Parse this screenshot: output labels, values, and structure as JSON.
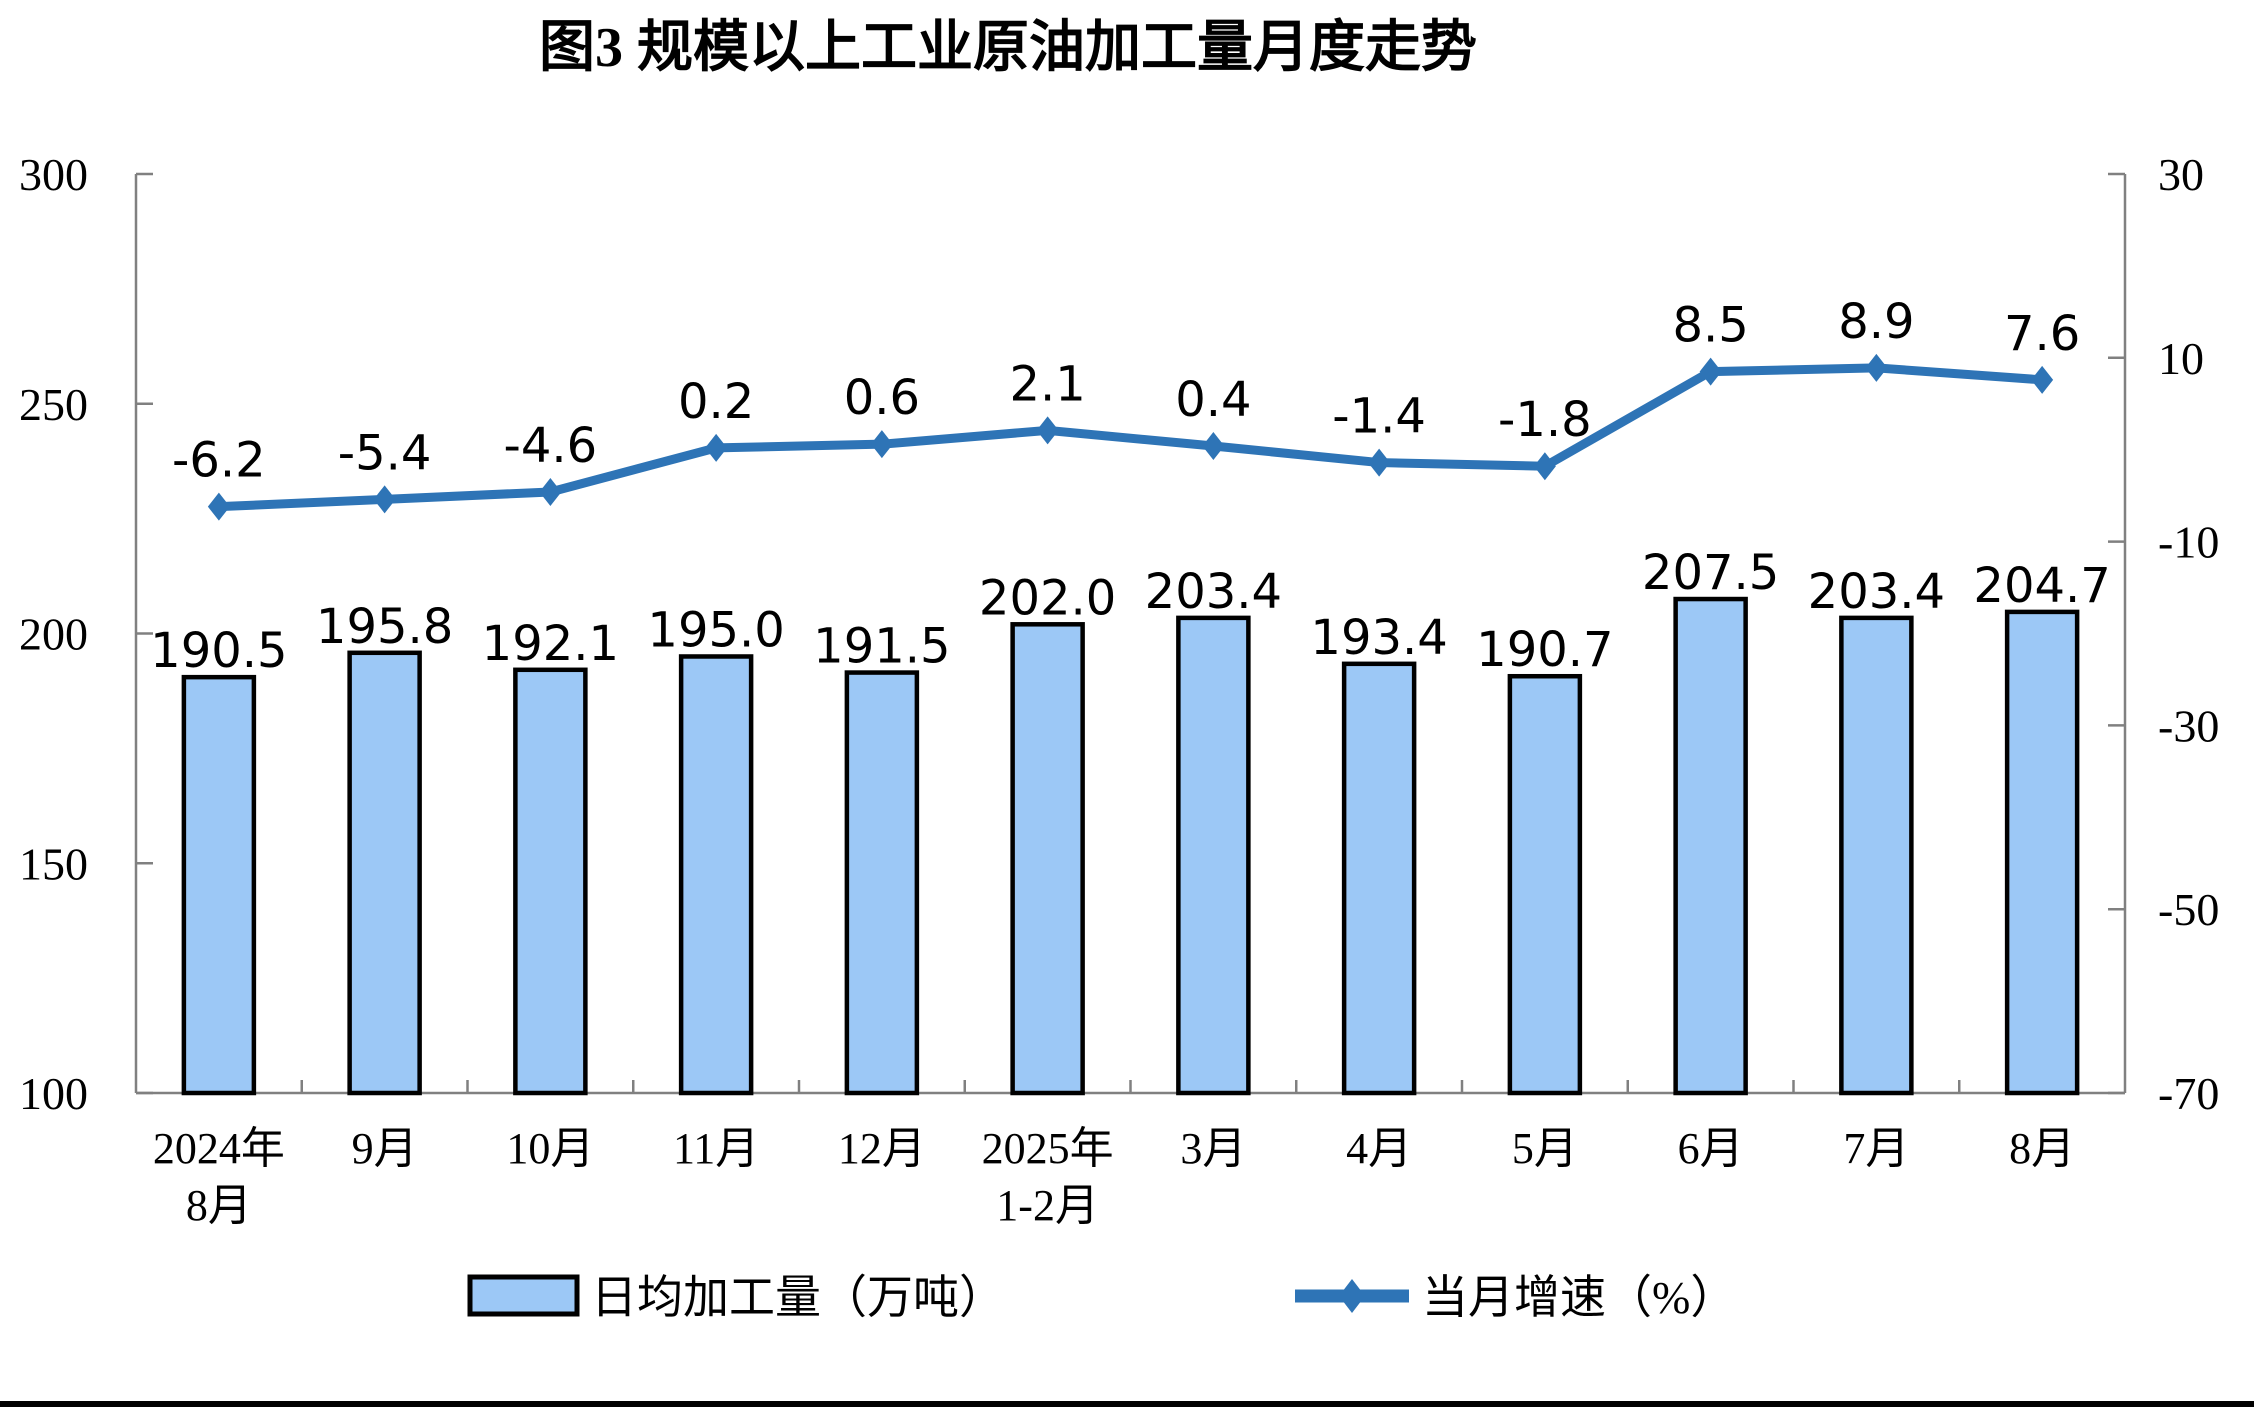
{
  "title": "图3 规模以上工业原油加工量月度走势",
  "colors": {
    "bar_fill": "#9CC8F6",
    "bar_border": "#000000",
    "line": "#2E74B6",
    "axis": "#808080",
    "text": "#000000",
    "divider": "#000000"
  },
  "legend": {
    "bar_label": "日均加工量（万吨）",
    "line_label": "当月增速（%）"
  },
  "chart_data": {
    "type": "bar+line",
    "title": "图3 规模以上工业原油加工量月度走势",
    "categories": [
      [
        "2024年",
        "8月"
      ],
      [
        "9月"
      ],
      [
        "10月"
      ],
      [
        "11月"
      ],
      [
        "12月"
      ],
      [
        "2025年",
        "1-2月"
      ],
      [
        "3月"
      ],
      [
        "4月"
      ],
      [
        "5月"
      ],
      [
        "6月"
      ],
      [
        "7月"
      ],
      [
        "8月"
      ]
    ],
    "series": [
      {
        "name": "日均加工量（万吨）",
        "type": "bar",
        "axis": "left",
        "values": [
          190.5,
          195.8,
          192.1,
          195.0,
          191.5,
          202.0,
          203.4,
          193.4,
          190.7,
          207.5,
          203.4,
          204.7
        ]
      },
      {
        "name": "当月增速（%）",
        "type": "line",
        "axis": "right",
        "values": [
          -6.2,
          -5.4,
          -4.6,
          0.2,
          0.6,
          2.1,
          0.4,
          -1.4,
          -1.8,
          8.5,
          8.9,
          7.6
        ]
      }
    ],
    "left_axis": {
      "min": 100,
      "max": 300,
      "ticks": [
        300,
        250,
        200,
        150,
        100
      ]
    },
    "right_axis": {
      "min": -70,
      "max": 30,
      "ticks": [
        30,
        10,
        -10,
        -30,
        -50,
        -70
      ]
    },
    "grid": false,
    "legend_position": "bottom",
    "data_labels": true
  }
}
